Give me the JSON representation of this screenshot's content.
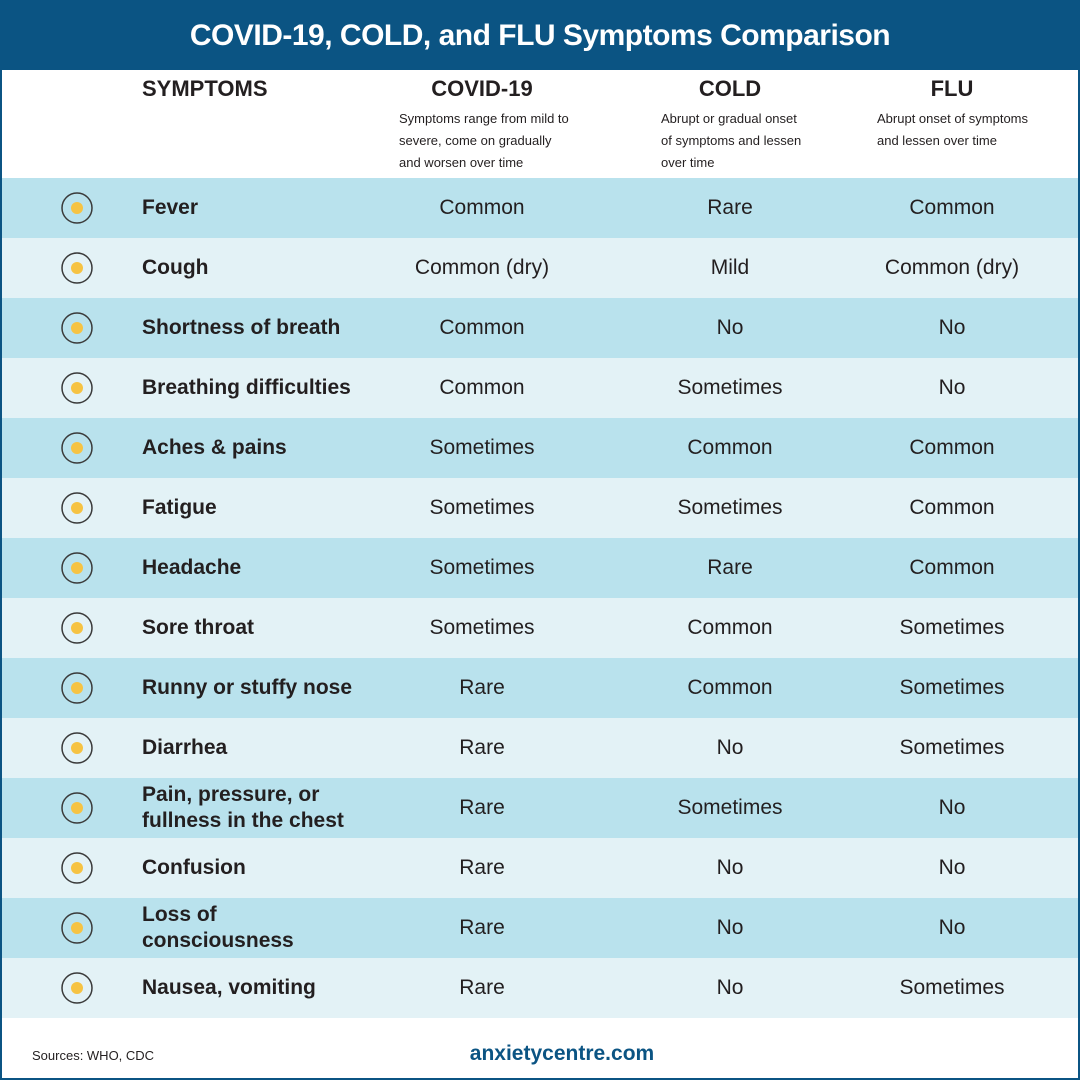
{
  "header": {
    "title": "COVID-19, COLD, and FLU Symptoms Comparison"
  },
  "table": {
    "columns": [
      {
        "name": "SYMPTOMS"
      },
      {
        "name": "COVID-19",
        "description": "Symptoms range from mild to severe, come on gradually and worsen over time"
      },
      {
        "name": "COLD",
        "description": "Abrupt or gradual onset of symptoms and lessen over time"
      },
      {
        "name": "FLU",
        "description": "Abrupt onset of symptoms and lessen over time"
      }
    ],
    "rows": [
      [
        "Fever",
        "Common",
        "Rare",
        "Common"
      ],
      [
        "Cough",
        "Common (dry)",
        "Mild",
        "Common (dry)"
      ],
      [
        "Shortness of breath",
        "Common",
        "No",
        "No"
      ],
      [
        "Breathing difficulties",
        "Common",
        "Sometimes",
        "No"
      ],
      [
        "Aches & pains",
        "Sometimes",
        "Common",
        "Common"
      ],
      [
        "Fatigue",
        "Sometimes",
        "Sometimes",
        "Common"
      ],
      [
        "Headache",
        "Sometimes",
        "Rare",
        "Common"
      ],
      [
        "Sore throat",
        "Sometimes",
        "Common",
        "Sometimes"
      ],
      [
        "Runny or stuffy nose",
        "Rare",
        "Common",
        "Sometimes"
      ],
      [
        "Diarrhea",
        "Rare",
        "No",
        "Sometimes"
      ],
      [
        "Pain, pressure, or fullness in the chest",
        "Rare",
        "Sometimes",
        "No"
      ],
      [
        "Confusion",
        "Rare",
        "No",
        "No"
      ],
      [
        "Loss of consciousness",
        "Rare",
        "No",
        "No"
      ],
      [
        "Nausea, vomiting",
        "Rare",
        "No",
        "Sometimes"
      ]
    ]
  },
  "footer": {
    "sources": "Sources: WHO, CDC",
    "logo": "anxietycentre.com"
  }
}
